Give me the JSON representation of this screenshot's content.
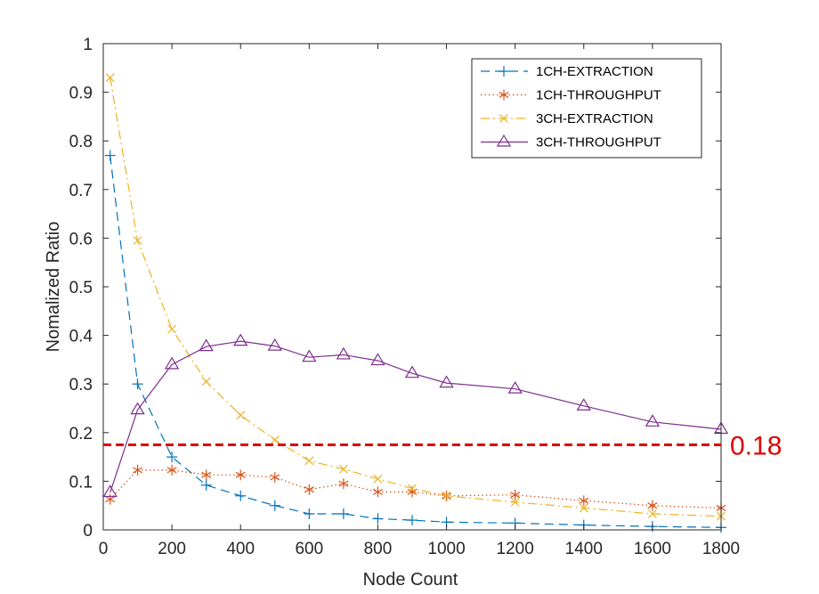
{
  "chart_data": {
    "type": "line",
    "title": "",
    "xlabel": "Node Count",
    "ylabel": "Nomalized Ratio",
    "xlim": [
      0,
      1800
    ],
    "ylim": [
      0,
      1
    ],
    "xticks": [
      0,
      200,
      400,
      600,
      800,
      1000,
      1200,
      1400,
      1600,
      1800
    ],
    "yticks": [
      0,
      0.1,
      0.2,
      0.3,
      0.4,
      0.5,
      0.6,
      0.7,
      0.8,
      0.9,
      1
    ],
    "x": [
      20,
      100,
      200,
      300,
      400,
      500,
      600,
      700,
      800,
      900,
      1000,
      1200,
      1400,
      1600,
      1800
    ],
    "legend_position": "top-right",
    "series": [
      {
        "name": "1CH-EXTRACTION",
        "color": "#0072BD",
        "dash": "dashed",
        "marker": "plus",
        "values": [
          0.77,
          0.3,
          0.15,
          0.092,
          0.07,
          0.05,
          0.033,
          0.033,
          0.023,
          0.02,
          0.016,
          0.014,
          0.01,
          0.007,
          0.005
        ]
      },
      {
        "name": "1CH-THROUGHPUT",
        "color": "#D95319",
        "dash": "dotted",
        "marker": "asterisk",
        "values": [
          0.063,
          0.123,
          0.123,
          0.113,
          0.113,
          0.108,
          0.083,
          0.095,
          0.078,
          0.078,
          0.07,
          0.072,
          0.06,
          0.05,
          0.045
        ]
      },
      {
        "name": "3CH-EXTRACTION",
        "color": "#EDB120",
        "dash": "dashdot",
        "marker": "x",
        "values": [
          0.93,
          0.595,
          0.413,
          0.305,
          0.236,
          0.185,
          0.142,
          0.125,
          0.105,
          0.085,
          0.07,
          0.057,
          0.045,
          0.033,
          0.028
        ]
      },
      {
        "name": "3CH-THROUGHPUT",
        "color": "#7E2F8E",
        "dash": "solid",
        "marker": "triangle",
        "values": [
          0.077,
          0.247,
          0.34,
          0.377,
          0.388,
          0.378,
          0.355,
          0.36,
          0.348,
          0.322,
          0.302,
          0.29,
          0.255,
          0.222,
          0.207
        ]
      }
    ],
    "reference_line": {
      "y": 0.175,
      "label": "0.18",
      "color": "#E00000"
    }
  }
}
